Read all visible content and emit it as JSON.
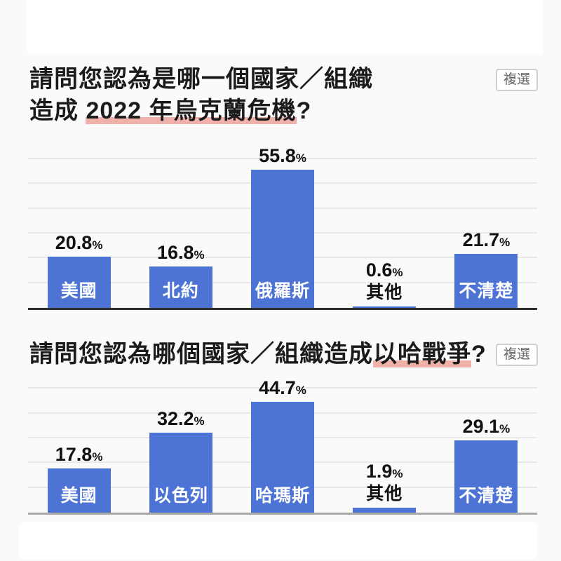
{
  "page": {
    "background": "#fafafa",
    "card_color": "#ffffff",
    "bar_color": "#4d74d4",
    "highlight_color": "#f0b1ab",
    "gridline_color": "#e9e9e9"
  },
  "chart_data": [
    {
      "type": "bar",
      "title": "請問您認為是哪一個國家／組織造成 2022 年烏克蘭危機?",
      "title_lines": [
        [
          {
            "t": "請問您認為是哪一個國家／組織",
            "hl": false
          }
        ],
        [
          {
            "t": "造成 ",
            "hl": false
          },
          {
            "t": "2022 年烏克蘭危機",
            "hl": true
          },
          {
            "t": "?",
            "hl": false
          }
        ]
      ],
      "badge": "複選",
      "categories": [
        "美國",
        "北約",
        "俄羅斯",
        "其他",
        "不清楚"
      ],
      "values": [
        20.8,
        16.8,
        55.8,
        0.6,
        21.7
      ],
      "unit": "%",
      "xlabel": "",
      "ylabel": "",
      "ylim": [
        0,
        68.8
      ],
      "grid_step_pct": 10,
      "grid_max_pct": 60,
      "legend": "none",
      "baseline_color": "#2e2e2e",
      "small_label_threshold": 5
    },
    {
      "type": "bar",
      "title": "請問您認為哪個國家／組織造成以哈戰爭?",
      "title_lines": [
        [
          {
            "t": "請問您認為哪個國家／組織造成",
            "hl": false
          },
          {
            "t": "以哈戰爭",
            "hl": true
          },
          {
            "t": "?",
            "hl": false
          }
        ]
      ],
      "badge": "複選",
      "categories": [
        "美國",
        "以色列",
        "哈瑪斯",
        "其他",
        "不清楚"
      ],
      "values": [
        17.8,
        32.2,
        44.7,
        1.9,
        29.1
      ],
      "unit": "%",
      "xlabel": "",
      "ylabel": "",
      "ylim": [
        0,
        56.6
      ],
      "grid_step_pct": 10,
      "grid_max_pct": 50,
      "legend": "none",
      "baseline_color": "#a9a9a9",
      "small_label_threshold": 5
    }
  ]
}
